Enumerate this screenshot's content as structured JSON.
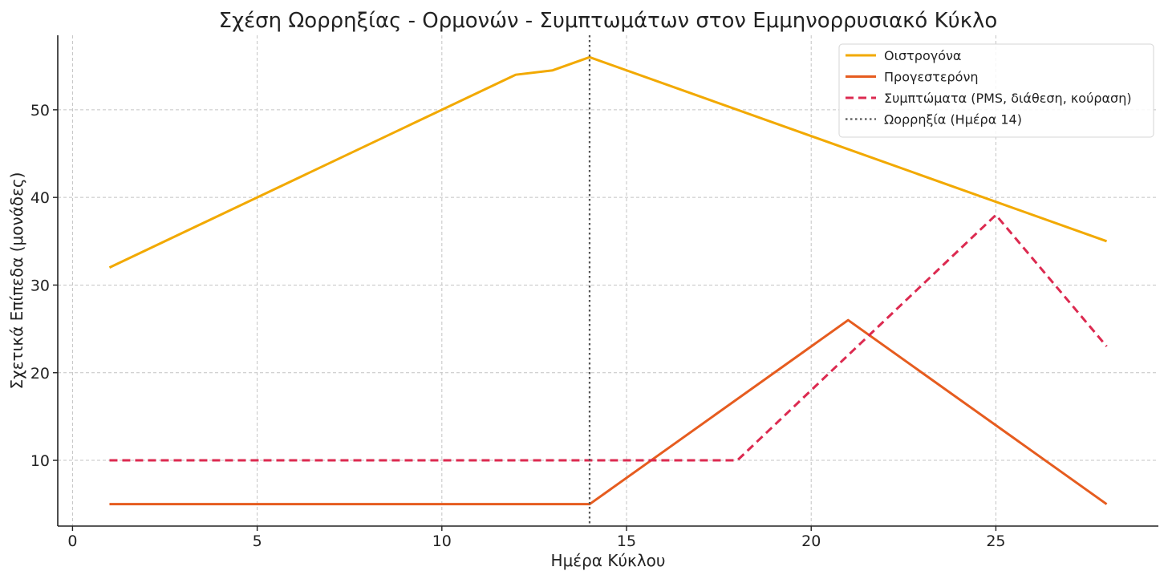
{
  "chart_data": {
    "type": "line",
    "title": "Σχέση Ωορρηξίας - Ορμονών - Συμπτωμάτων στον Εμμηνορρυσιακό Κύκλο",
    "xlabel": "Ημέρα Κύκλου",
    "ylabel": "Σχετικά Επίπεδα (μονάδες)",
    "xlim": [
      -0.4,
      29.4
    ],
    "ylim": [
      2.5,
      58.5
    ],
    "xticks": [
      0,
      5,
      10,
      15,
      20,
      25
    ],
    "yticks": [
      10,
      20,
      30,
      40,
      50
    ],
    "grid": true,
    "legend_position": "top-right",
    "series": [
      {
        "name": "Οιστρογόνα",
        "color": "#f2a900",
        "style": "solid",
        "x": [
          1,
          12,
          13,
          14,
          28
        ],
        "y": [
          32,
          54,
          54.5,
          56,
          35
        ]
      },
      {
        "name": "Προγεστερόνη",
        "color": "#e65c1f",
        "style": "solid",
        "x": [
          1,
          14,
          21,
          28
        ],
        "y": [
          5,
          5,
          26,
          5
        ]
      },
      {
        "name": "Συμπτώματα (PMS, διάθεση, κούραση)",
        "color": "#dc2a50",
        "style": "dashed",
        "x": [
          1,
          18,
          25,
          28
        ],
        "y": [
          10,
          10,
          38,
          23
        ]
      }
    ],
    "vlines": [
      {
        "name": "Ωορρηξία (Ημέρα 14)",
        "x": 14,
        "color": "#555555",
        "style": "dotted"
      }
    ]
  }
}
